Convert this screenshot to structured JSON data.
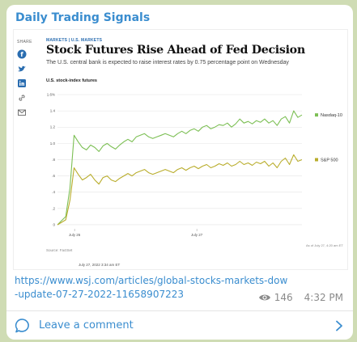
{
  "channel": {
    "name": "Daily Trading Signals"
  },
  "article": {
    "share_label": "SHARE",
    "share_icons": [
      "facebook-icon",
      "twitter-icon",
      "linkedin-icon",
      "link-icon",
      "email-icon"
    ],
    "breadcrumb": "MARKETS | U.S. MARKETS",
    "headline": "Stock Futures Rise Ahead of Fed Decision",
    "subheadline": "The U.S. central bank is expected to raise interest rates by 0.75 percentage point on Wednesday",
    "source": "Source: FactSet",
    "published": "July 27, 2022 3:34 am ET",
    "as_of": "As of July 27, 4:20 am ET"
  },
  "chart_data": {
    "type": "line",
    "title": "U.S. stock-index futures",
    "unit_suffix": "%",
    "ylim": [
      -0.05,
      1.6
    ],
    "yticks": [
      0,
      0.2,
      0.4,
      0.6,
      0.8,
      1.0,
      1.2,
      1.4,
      1.6
    ],
    "ytick_labels": [
      "0",
      ".2",
      ".4",
      ".6",
      ".8",
      "1.0",
      "1.2",
      "1.4",
      "1.6%"
    ],
    "xtick_labels": [
      "July 26",
      "July 27"
    ],
    "xtick_positions": [
      0.07,
      0.57
    ],
    "grid": true,
    "colors": {
      "nasdaq": "#7cbf54",
      "sp": "#b9ad2c"
    },
    "series": [
      {
        "name": "Nasdaq-100",
        "values": [
          0,
          0.05,
          0.1,
          0.45,
          1.1,
          1.02,
          0.95,
          0.92,
          0.98,
          0.95,
          0.9,
          0.97,
          1.0,
          0.96,
          0.93,
          0.98,
          1.02,
          1.05,
          1.02,
          1.08,
          1.1,
          1.12,
          1.08,
          1.06,
          1.08,
          1.1,
          1.12,
          1.1,
          1.08,
          1.12,
          1.15,
          1.12,
          1.16,
          1.18,
          1.15,
          1.2,
          1.22,
          1.18,
          1.2,
          1.23,
          1.22,
          1.25,
          1.2,
          1.24,
          1.3,
          1.25,
          1.27,
          1.24,
          1.28,
          1.26,
          1.3,
          1.25,
          1.28,
          1.22,
          1.3,
          1.33,
          1.25,
          1.4,
          1.32,
          1.35
        ]
      },
      {
        "name": "S&P 500",
        "values": [
          0,
          0.03,
          0.06,
          0.3,
          0.7,
          0.62,
          0.55,
          0.58,
          0.62,
          0.55,
          0.5,
          0.58,
          0.6,
          0.55,
          0.53,
          0.57,
          0.6,
          0.63,
          0.6,
          0.64,
          0.66,
          0.68,
          0.64,
          0.62,
          0.64,
          0.66,
          0.68,
          0.66,
          0.64,
          0.68,
          0.7,
          0.67,
          0.7,
          0.72,
          0.69,
          0.72,
          0.74,
          0.7,
          0.72,
          0.75,
          0.73,
          0.76,
          0.72,
          0.74,
          0.78,
          0.74,
          0.76,
          0.73,
          0.77,
          0.75,
          0.78,
          0.72,
          0.76,
          0.7,
          0.78,
          0.82,
          0.74,
          0.86,
          0.78,
          0.8
        ]
      }
    ]
  },
  "message": {
    "url": "https://www.wsj.com/articles/global-stocks-markets-dow-update-07-27-2022-11658907223",
    "views": "146",
    "time": "4:32 PM"
  },
  "footer": {
    "comment_label": "Leave a comment"
  }
}
